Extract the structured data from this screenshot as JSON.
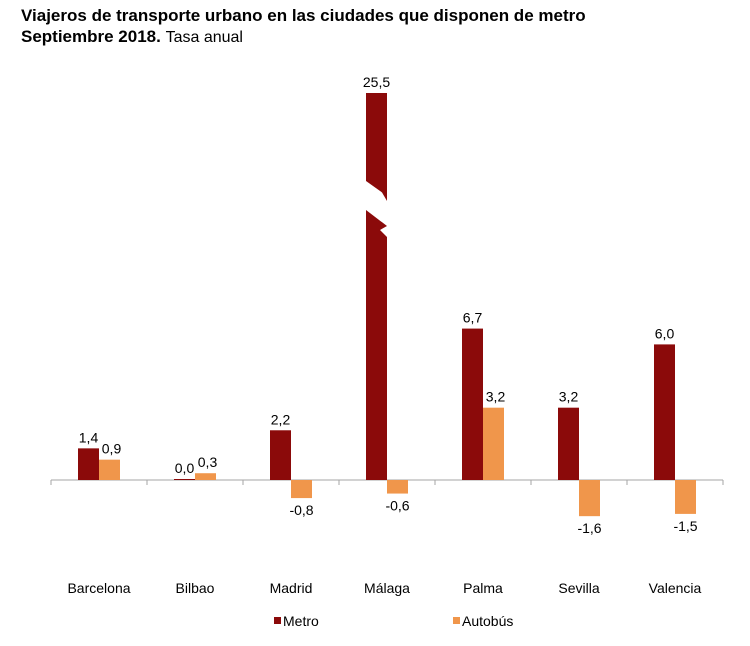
{
  "chart_data": {
    "type": "bar",
    "title": "Viajeros de transporte urbano en las ciudades que disponen de metro",
    "subtitle_bold": "Septiembre 2018.",
    "subtitle_normal": "Tasa anual",
    "xlabel": "",
    "ylabel": "",
    "categories": [
      "Barcelona",
      "Bilbao",
      "Madrid",
      "Málaga",
      "Palma",
      "Sevilla",
      "Valencia"
    ],
    "series": [
      {
        "name": "Metro",
        "color": "#8B0A0A",
        "values": [
          1.4,
          0.0,
          2.2,
          25.5,
          6.7,
          3.2,
          6.0
        ],
        "labels": [
          "1,4",
          "0,0",
          "2,2",
          "25,5",
          "6,7",
          "3,2",
          "6,0"
        ]
      },
      {
        "name": "Autobús",
        "color": "#F0964B",
        "values": [
          0.9,
          0.3,
          -0.8,
          -0.6,
          3.2,
          -1.6,
          -1.5
        ],
        "labels": [
          "0,9",
          "0,3",
          "-0,8",
          "-0,6",
          "3,2",
          "-1,6",
          "-1,5"
        ]
      }
    ],
    "broken_axis_category": "Málaga",
    "grid": false,
    "legend_position": "bottom"
  }
}
